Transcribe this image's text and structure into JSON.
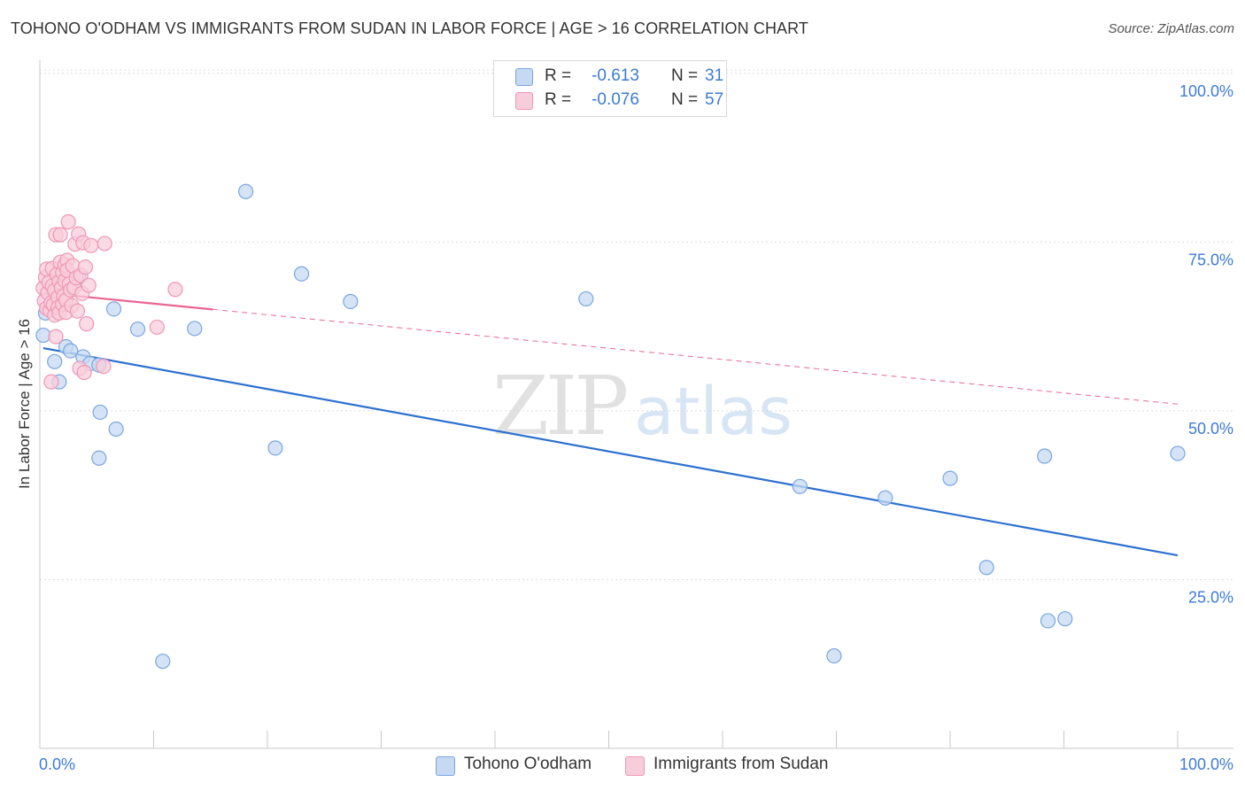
{
  "chart_data": {
    "type": "scatter",
    "title": "TOHONO O'ODHAM VS IMMIGRANTS FROM SUDAN IN LABOR FORCE | AGE > 16 CORRELATION CHART",
    "source": "Source: ZipAtlas.com",
    "xlabel": "",
    "ylabel": "In Labor Force | Age > 16",
    "xlim": [
      0,
      100
    ],
    "ylim": [
      0,
      103
    ],
    "x_tick_labels": [
      "0.0%",
      "100.0%"
    ],
    "y_ticks": [
      25,
      50,
      75,
      100
    ],
    "y_tick_labels": [
      "25.0%",
      "50.0%",
      "75.0%",
      "100.0%"
    ],
    "grid": true,
    "watermark": {
      "part1": "ZIP",
      "part2": "atlas"
    },
    "legend_position": "top-center",
    "legend": [
      {
        "r_label": "R =",
        "r_value": "-0.613",
        "n_label": "N =",
        "n_value": "31"
      },
      {
        "r_label": "R =",
        "r_value": "-0.076",
        "n_label": "N =",
        "n_value": "57"
      }
    ],
    "series": [
      {
        "name": "Tohono O'odham",
        "color": "#7aa6e0",
        "fill": "#c5d9f3",
        "line_color": "#2d70d0",
        "trend": {
          "x0": 0.3,
          "y0": 59.3,
          "x1": 100,
          "y1": 28.6,
          "dash_from": null
        },
        "points": [
          [
            0.3,
            61.2
          ],
          [
            1.3,
            57.3
          ],
          [
            1.7,
            54.3
          ],
          [
            2.3,
            59.5
          ],
          [
            2.7,
            58.9
          ],
          [
            3.4,
            69.8
          ],
          [
            3.8,
            58.0
          ],
          [
            4.4,
            57.0
          ],
          [
            5.2,
            56.8
          ],
          [
            5.2,
            43.0
          ],
          [
            5.3,
            49.8
          ],
          [
            6.5,
            65.1
          ],
          [
            6.7,
            47.3
          ],
          [
            8.6,
            62.1
          ],
          [
            10.8,
            12.9
          ],
          [
            13.6,
            62.2
          ],
          [
            18.1,
            82.5
          ],
          [
            20.7,
            44.5
          ],
          [
            23.0,
            70.3
          ],
          [
            27.3,
            66.2
          ],
          [
            48.0,
            66.6
          ],
          [
            66.8,
            38.8
          ],
          [
            69.8,
            13.7
          ],
          [
            74.3,
            37.1
          ],
          [
            80.0,
            40.0
          ],
          [
            83.2,
            26.8
          ],
          [
            88.3,
            43.3
          ],
          [
            88.6,
            18.9
          ],
          [
            90.1,
            19.2
          ],
          [
            100.0,
            43.7
          ],
          [
            0.5,
            64.5
          ]
        ]
      },
      {
        "name": "Immigrants from Sudan",
        "color": "#ef97b4",
        "fill": "#f8cddb",
        "line_color": "#e86590",
        "trend": {
          "x0": 0.3,
          "y0": 67.5,
          "x1": 100,
          "y1": 51.0,
          "dash_from": 15.2
        },
        "points": [
          [
            0.3,
            68.2
          ],
          [
            0.4,
            66.3
          ],
          [
            0.5,
            69.8
          ],
          [
            0.6,
            65.2
          ],
          [
            0.6,
            71.0
          ],
          [
            0.7,
            67.5
          ],
          [
            0.8,
            69.0
          ],
          [
            0.9,
            64.9
          ],
          [
            1.0,
            66.0
          ],
          [
            1.0,
            54.3
          ],
          [
            1.1,
            68.5
          ],
          [
            1.1,
            71.1
          ],
          [
            1.2,
            65.7
          ],
          [
            1.3,
            67.8
          ],
          [
            1.3,
            64.2
          ],
          [
            1.4,
            76.1
          ],
          [
            1.4,
            61.0
          ],
          [
            1.5,
            70.2
          ],
          [
            1.6,
            66.8
          ],
          [
            1.6,
            65.3
          ],
          [
            1.7,
            69.1
          ],
          [
            1.7,
            64.5
          ],
          [
            1.8,
            72.0
          ],
          [
            1.8,
            76.1
          ],
          [
            1.9,
            68.2
          ],
          [
            2.0,
            65.8
          ],
          [
            2.0,
            70.5
          ],
          [
            2.1,
            67.0
          ],
          [
            2.2,
            71.6
          ],
          [
            2.2,
            69.3
          ],
          [
            2.3,
            66.4
          ],
          [
            2.3,
            64.6
          ],
          [
            2.4,
            72.3
          ],
          [
            2.4,
            70.8
          ],
          [
            2.5,
            78.0
          ],
          [
            2.6,
            68.8
          ],
          [
            2.7,
            67.9
          ],
          [
            2.8,
            65.6
          ],
          [
            2.9,
            71.5
          ],
          [
            3.0,
            68.3
          ],
          [
            3.1,
            74.7
          ],
          [
            3.2,
            69.7
          ],
          [
            3.3,
            64.8
          ],
          [
            3.4,
            76.2
          ],
          [
            3.5,
            56.3
          ],
          [
            3.6,
            70.1
          ],
          [
            3.7,
            67.4
          ],
          [
            3.8,
            74.9
          ],
          [
            3.9,
            55.7
          ],
          [
            4.0,
            71.3
          ],
          [
            4.1,
            62.9
          ],
          [
            4.3,
            68.6
          ],
          [
            4.5,
            74.5
          ],
          [
            5.6,
            56.6
          ],
          [
            5.7,
            74.8
          ],
          [
            10.3,
            62.4
          ],
          [
            11.9,
            68.0
          ]
        ]
      }
    ]
  }
}
